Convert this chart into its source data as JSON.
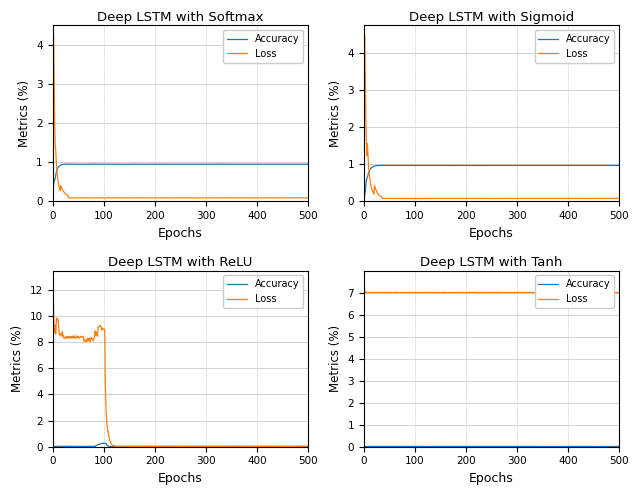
{
  "subplots": [
    {
      "title": "Deep LSTM with Softmax",
      "acc_color": "#1f77b4",
      "loss_color": "#ff7f0e",
      "ylim": [
        0,
        4.5
      ],
      "yticks": [
        0,
        1,
        2,
        3,
        4
      ]
    },
    {
      "title": "Deep LSTM with Sigmoid",
      "acc_color": "#1f77b4",
      "loss_color": "#ff7f0e",
      "ylim": [
        0,
        4.75
      ],
      "yticks": [
        0,
        1,
        2,
        3,
        4
      ]
    },
    {
      "title": "Deep LSTM with ReLU",
      "acc_color": "#1f77b4",
      "loss_color": "#ff7f0e",
      "ylim": [
        0,
        13.5
      ],
      "yticks": [
        0,
        2,
        4,
        6,
        8,
        10,
        12
      ]
    },
    {
      "title": "Deep LSTM with Tanh",
      "acc_color": "#1f77b4",
      "loss_color": "#ff7f0e",
      "ylim": [
        0,
        8.0
      ],
      "yticks": [
        0,
        1,
        2,
        3,
        4,
        5,
        6,
        7
      ]
    }
  ],
  "xlabel": "Epochs",
  "ylabel": "Metrics (%)",
  "legend_labels": [
    "Accuracy",
    "Loss"
  ],
  "background_color": "#ffffff"
}
